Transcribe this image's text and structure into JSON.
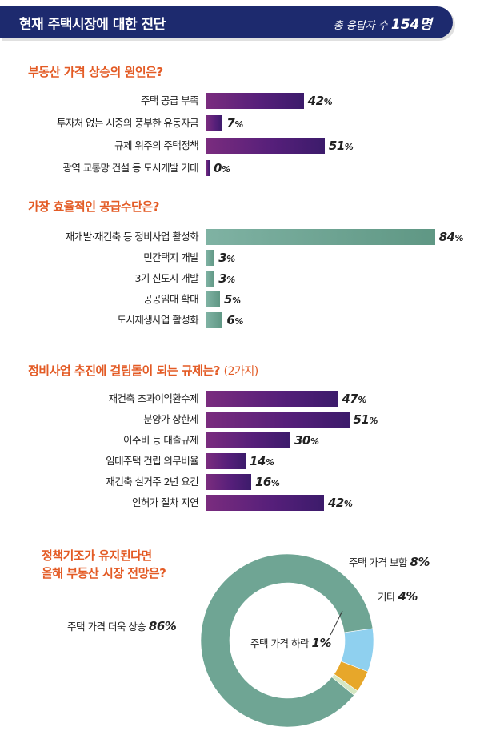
{
  "header": {
    "title": "현재 주택시장에 대한 진단",
    "respondents_label": "총 응답자 수",
    "respondents_count": "154명"
  },
  "colors": {
    "banner": "#1d2a6e",
    "accent": "#e35b25",
    "bar_purple": "#561f7a",
    "bar_teal": "#6fa594"
  },
  "chart_data": [
    {
      "type": "bar",
      "title": "부동산 가격 상승의 원인은?",
      "categories": [
        "주택 공급 부족",
        "투자처 없는 시중의 풍부한 유동자금",
        "규제 위주의 주택정책",
        "광역 교통망 건설 등 도시개발 기대"
      ],
      "values": [
        42,
        7,
        51,
        0
      ],
      "unit": "%"
    },
    {
      "type": "bar",
      "title": "가장 효율적인 공급수단은?",
      "categories": [
        "재개발·재건축 등 정비사업 활성화",
        "민간택지 개발",
        "3기 신도시 개발",
        "공공임대 확대",
        "도시재생사업 활성화"
      ],
      "values": [
        84,
        3,
        3,
        5,
        6
      ],
      "unit": "%"
    },
    {
      "type": "bar",
      "title": "정비사업 추진에 걸림돌이 되는 규제는?",
      "note": "(2가지)",
      "categories": [
        "재건축 초과이익환수제",
        "분양가 상한제",
        "이주비 등 대출규제",
        "임대주택 건립 의무비율",
        "재건축 실거주 2년 요건",
        "인허가 절차 지연"
      ],
      "values": [
        47,
        51,
        30,
        14,
        16,
        42
      ],
      "unit": "%"
    },
    {
      "type": "pie",
      "title_line1": "정책기조가 유지된다면",
      "title_line2": "올해 부동산 시장 전망은?",
      "categories": [
        "주택 가격 더욱 상승",
        "주택 가격 보합",
        "기타",
        "주택 가격 하락"
      ],
      "values": [
        86,
        8,
        4,
        1
      ],
      "unit": "%",
      "colors": [
        "#6fa594",
        "#8fd0ef",
        "#e7a72a",
        "#d5e7c2"
      ]
    }
  ]
}
